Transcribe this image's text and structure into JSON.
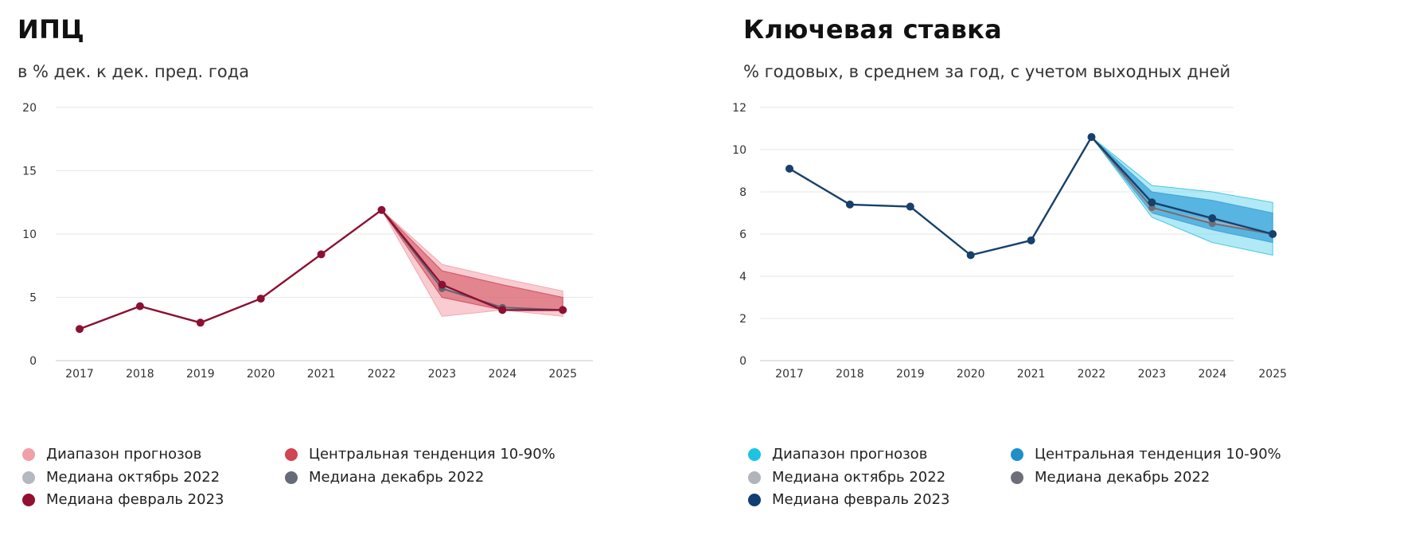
{
  "chart_data": [
    {
      "type": "line",
      "title": "ИПЦ",
      "subtitle": "в % дек. к дек. пред. года",
      "x": [
        "2017",
        "2018",
        "2019",
        "2020",
        "2021",
        "2022",
        "2023",
        "2024",
        "2025"
      ],
      "ylim": [
        0,
        20
      ],
      "yticks": [
        "0",
        "5",
        "10",
        "15",
        "20"
      ],
      "grid": true,
      "legend_position": "bottom",
      "colors": {
        "range": "#f2a3ab",
        "central": "#d04a58",
        "median_oct": "#b8bcc4",
        "median_dec": "#5f6470",
        "median_feb": "#8c1032",
        "legend_range": "#f0a0a6",
        "legend_central": "#d14452",
        "legend_oct": "#b4b8c0",
        "legend_dec": "#666b78",
        "legend_feb": "#930f2f"
      },
      "series": [
        {
          "name": "Медиана февраль 2023",
          "values": [
            2.5,
            4.3,
            3.0,
            4.9,
            8.4,
            11.9,
            6.0,
            4.0,
            4.0
          ]
        },
        {
          "name": "Медиана декабрь 2022",
          "values": [
            null,
            null,
            null,
            null,
            null,
            11.9,
            5.7,
            4.2,
            4.0
          ]
        },
        {
          "name": "Медиана октябрь 2022",
          "values": [
            null,
            null,
            null,
            null,
            null,
            11.9,
            5.9,
            4.1,
            4.0
          ]
        }
      ],
      "bands": [
        {
          "name": "Диапазон прогнозов",
          "x_start": "2022",
          "low": [
            11.9,
            3.5,
            4.0,
            3.5
          ],
          "high": [
            11.9,
            7.6,
            6.5,
            5.5
          ]
        },
        {
          "name": "Центральная тенденция 10-90%",
          "x_start": "2022",
          "low": [
            11.9,
            5.0,
            4.0,
            4.0
          ],
          "high": [
            11.9,
            7.1,
            6.0,
            5.0
          ]
        }
      ],
      "legend": [
        "Диапазон прогнозов",
        "Центральная тенденция 10-90%",
        "Медиана октябрь 2022",
        "Медиана декабрь 2022",
        "Медиана февраль 2023"
      ]
    },
    {
      "type": "line",
      "title": "Ключевая ставка",
      "subtitle": "% годовых, в среднем за год, с учетом выходных дней",
      "x": [
        "2017",
        "2018",
        "2019",
        "2020",
        "2021",
        "2022",
        "2023",
        "2024",
        "2025"
      ],
      "ylim": [
        0,
        12
      ],
      "yticks": [
        "0",
        "2",
        "4",
        "6",
        "8",
        "10",
        "12"
      ],
      "grid": true,
      "legend_position": "bottom",
      "colors": {
        "range": "#7fdaf0",
        "central": "#3aa2d8",
        "range_edge": "#33c4e0",
        "median_oct": "#a9adb4",
        "median_dec": "#6d7079",
        "median_feb": "#17406b",
        "legend_range": "#1ec2e4",
        "legend_central": "#1d8fc9",
        "legend_oct": "#b1b4ba",
        "legend_dec": "#6c6f78",
        "legend_feb": "#0f3e72"
      },
      "series": [
        {
          "name": "Медиана февраль 2023",
          "values": [
            9.1,
            7.4,
            7.3,
            5.0,
            5.7,
            10.6,
            7.5,
            6.75,
            6.0
          ]
        },
        {
          "name": "Медиана декабрь 2022",
          "values": [
            null,
            null,
            null,
            null,
            null,
            10.6,
            7.25,
            6.5,
            6.0
          ]
        },
        {
          "name": "Медиана октябрь 2022",
          "values": [
            null,
            null,
            null,
            null,
            null,
            10.6,
            7.2,
            6.6,
            6.0
          ]
        }
      ],
      "bands": [
        {
          "name": "Диапазон прогнозов",
          "x_start": "2022",
          "low": [
            10.6,
            6.8,
            5.6,
            5.0
          ],
          "high": [
            10.6,
            8.3,
            8.0,
            7.5
          ]
        },
        {
          "name": "Центральная тенденция 10-90%",
          "x_start": "2022",
          "low": [
            10.6,
            7.0,
            6.2,
            5.6
          ],
          "high": [
            10.6,
            8.0,
            7.6,
            7.0
          ]
        }
      ],
      "legend": [
        "Диапазон прогнозов",
        "Центральная тенденция 10-90%",
        "Медиана октябрь 2022",
        "Медиана декабрь 2022",
        "Медиана февраль 2023"
      ]
    }
  ]
}
